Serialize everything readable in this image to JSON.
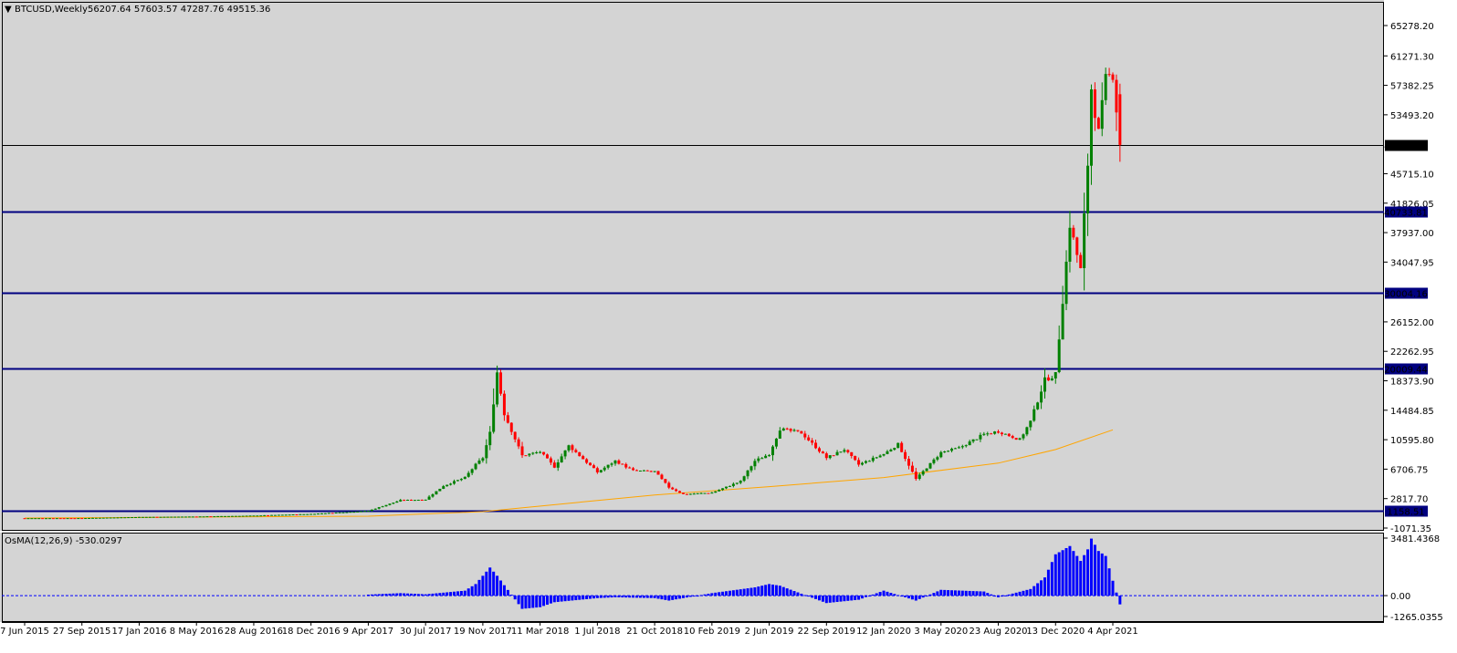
{
  "header": {
    "symbol_arrow": "▼",
    "symbol": "BTCUSD,Weekly",
    "ohlc": "56207.64 57603.57 47287.76 49515.36"
  },
  "colors": {
    "background": "#d4d4d4",
    "bull_candle": "#008000",
    "bear_candle": "#ff0000",
    "ma_line": "#ffa500",
    "level_line": "#000080",
    "price_line": "#000000",
    "osma_bar": "#0000ff"
  },
  "chart_data": [
    {
      "type": "candlestick",
      "title": "BTCUSD,Weekly",
      "ylim": [
        -1071.35,
        67000
      ],
      "y_ticks": [
        65278.2,
        61271.3,
        57382.25,
        53493.2,
        45715.1,
        41826.05,
        37937.0,
        34047.95,
        26152.0,
        22262.95,
        18373.9,
        14484.85,
        10595.8,
        6706.75,
        2817.7,
        -1071.35
      ],
      "y_tick_labels": [
        "65278.20",
        "61271.30",
        "57382.25",
        "53493.20",
        "45715.10",
        "41826.05",
        "37937.00",
        "34047.95",
        "26152.00",
        "22262.95",
        "18373.90",
        "14484.85",
        "10595.80",
        "6706.75",
        "2817.70",
        "-1071.35"
      ],
      "x_tick_labels": [
        "7 Jun 2015",
        "27 Sep 2015",
        "17 Jan 2016",
        "8 May 2016",
        "28 Aug 2016",
        "18 Dec 2016",
        "9 Apr 2017",
        "30 Jul 2017",
        "19 Nov 2017",
        "11 Mar 2018",
        "1 Jul 2018",
        "21 Oct 2018",
        "10 Feb 2019",
        "2 Jun 2019",
        "22 Sep 2019",
        "12 Jan 2020",
        "3 May 2020",
        "23 Aug 2020",
        "13 Dec 2020",
        "4 Apr 2021"
      ],
      "close_series": [
        {
          "date": "7 Jun 2015",
          "value": 230
        },
        {
          "date": "27 Sep 2015",
          "value": 240
        },
        {
          "date": "17 Jan 2016",
          "value": 390
        },
        {
          "date": "8 May 2016",
          "value": 450
        },
        {
          "date": "28 Aug 2016",
          "value": 570
        },
        {
          "date": "18 Dec 2016",
          "value": 790
        },
        {
          "date": "9 Apr 2017",
          "value": 1200
        },
        {
          "date": "11 Jun 2017",
          "value": 2600
        },
        {
          "date": "30 Jul 2017",
          "value": 2700
        },
        {
          "date": "3 Sep 2017",
          "value": 4500
        },
        {
          "date": "15 Oct 2017",
          "value": 5600
        },
        {
          "date": "5 Nov 2017",
          "value": 7300
        },
        {
          "date": "19 Nov 2017",
          "value": 8200
        },
        {
          "date": "3 Dec 2017",
          "value": 11500
        },
        {
          "date": "17 Dec 2017",
          "value": 19500
        },
        {
          "date": "31 Dec 2017",
          "value": 14000
        },
        {
          "date": "4 Feb 2018",
          "value": 8500
        },
        {
          "date": "11 Mar 2018",
          "value": 9000
        },
        {
          "date": "8 Apr 2018",
          "value": 7000
        },
        {
          "date": "6 May 2018",
          "value": 9800
        },
        {
          "date": "1 Jul 2018",
          "value": 6300
        },
        {
          "date": "5 Aug 2018",
          "value": 7800
        },
        {
          "date": "9 Sep 2018",
          "value": 6500
        },
        {
          "date": "21 Oct 2018",
          "value": 6400
        },
        {
          "date": "18 Nov 2018",
          "value": 4300
        },
        {
          "date": "16 Dec 2018",
          "value": 3400
        },
        {
          "date": "10 Feb 2019",
          "value": 3600
        },
        {
          "date": "7 Apr 2019",
          "value": 5100
        },
        {
          "date": "5 May 2019",
          "value": 7800
        },
        {
          "date": "2 Jun 2019",
          "value": 8700
        },
        {
          "date": "23 Jun 2019",
          "value": 12000
        },
        {
          "date": "4 Aug 2019",
          "value": 11500
        },
        {
          "date": "22 Sep 2019",
          "value": 8200
        },
        {
          "date": "27 Oct 2019",
          "value": 9300
        },
        {
          "date": "24 Nov 2019",
          "value": 7300
        },
        {
          "date": "12 Jan 2020",
          "value": 8700
        },
        {
          "date": "9 Feb 2020",
          "value": 10000
        },
        {
          "date": "15 Mar 2020",
          "value": 5400
        },
        {
          "date": "3 May 2020",
          "value": 8900
        },
        {
          "date": "7 Jun 2020",
          "value": 9500
        },
        {
          "date": "26 Jul 2020",
          "value": 11300
        },
        {
          "date": "23 Aug 2020",
          "value": 11700
        },
        {
          "date": "4 Oct 2020",
          "value": 10600
        },
        {
          "date": "25 Oct 2020",
          "value": 13000
        },
        {
          "date": "22 Nov 2020",
          "value": 18500
        },
        {
          "date": "13 Dec 2020",
          "value": 19200
        },
        {
          "date": "27 Dec 2020",
          "value": 29000
        },
        {
          "date": "10 Jan 2021",
          "value": 39000
        },
        {
          "date": "31 Jan 2021",
          "value": 33000
        },
        {
          "date": "14 Feb 2021",
          "value": 47000
        },
        {
          "date": "21 Feb 2021",
          "value": 57000
        },
        {
          "date": "7 Mar 2021",
          "value": 51000
        },
        {
          "date": "21 Mar 2021",
          "value": 58000
        },
        {
          "date": "4 Apr 2021",
          "value": 59000
        },
        {
          "date": "18 Apr 2021",
          "value": 49515.36
        }
      ],
      "last_candle": {
        "open": 56207.64,
        "high": 57603.57,
        "low": 47287.76,
        "close": 49515.36
      },
      "current_price": 49515.36,
      "current_price_label": "49515.36",
      "horizontal_levels": [
        {
          "value": 40733.81,
          "label": "40733.81"
        },
        {
          "value": 30004.16,
          "label": "30004.16"
        },
        {
          "value": 20009.44,
          "label": "20009.44"
        },
        {
          "value": 1158.51,
          "label": "1158.51"
        }
      ],
      "ma_series": [
        {
          "date": "7 Jun 2015",
          "value": 250
        },
        {
          "date": "9 Apr 2017",
          "value": 500
        },
        {
          "date": "19 Nov 2017",
          "value": 1100
        },
        {
          "date": "21 Oct 2018",
          "value": 3300
        },
        {
          "date": "2 Jun 2019",
          "value": 4400
        },
        {
          "date": "12 Jan 2020",
          "value": 5600
        },
        {
          "date": "23 Aug 2020",
          "value": 7500
        },
        {
          "date": "13 Dec 2020",
          "value": 9300
        },
        {
          "date": "4 Apr 2021",
          "value": 11900
        }
      ],
      "grid": false,
      "legend": "none"
    },
    {
      "type": "bar",
      "title": "OsMA(12,26,9) -530.0297",
      "indicator": "OsMA(12,26,9)",
      "value_label": "-530.0297",
      "ylim": [
        -1265.0355,
        3481.4368
      ],
      "y_ticks": [
        3481.4368,
        0.0,
        -1265.0355
      ],
      "y_tick_labels": [
        "3481.4368",
        "0.00",
        "-1265.0355"
      ],
      "zero_line": true,
      "series": [
        {
          "date": "9 Apr 2017",
          "value": 60
        },
        {
          "date": "11 Jun 2017",
          "value": 150
        },
        {
          "date": "30 Jul 2017",
          "value": 80
        },
        {
          "date": "15 Oct 2017",
          "value": 300
        },
        {
          "date": "5 Nov 2017",
          "value": 700
        },
        {
          "date": "3 Dec 2017",
          "value": 1700
        },
        {
          "date": "17 Dec 2017",
          "value": 1200
        },
        {
          "date": "4 Feb 2018",
          "value": -800
        },
        {
          "date": "11 Mar 2018",
          "value": -700
        },
        {
          "date": "8 Apr 2018",
          "value": -400
        },
        {
          "date": "1 Jul 2018",
          "value": -150
        },
        {
          "date": "5 Aug 2018",
          "value": -100
        },
        {
          "date": "21 Oct 2018",
          "value": -150
        },
        {
          "date": "18 Nov 2018",
          "value": -300
        },
        {
          "date": "10 Feb 2019",
          "value": 150
        },
        {
          "date": "5 May 2019",
          "value": 500
        },
        {
          "date": "2 Jun 2019",
          "value": 700
        },
        {
          "date": "23 Jun 2019",
          "value": 600
        },
        {
          "date": "22 Sep 2019",
          "value": -450
        },
        {
          "date": "24 Nov 2019",
          "value": -250
        },
        {
          "date": "12 Jan 2020",
          "value": 300
        },
        {
          "date": "15 Mar 2020",
          "value": -300
        },
        {
          "date": "3 May 2020",
          "value": 350
        },
        {
          "date": "26 Jul 2020",
          "value": 250
        },
        {
          "date": "23 Aug 2020",
          "value": -100
        },
        {
          "date": "25 Oct 2020",
          "value": 400
        },
        {
          "date": "22 Nov 2020",
          "value": 1100
        },
        {
          "date": "13 Dec 2020",
          "value": 2500
        },
        {
          "date": "10 Jan 2021",
          "value": 3000
        },
        {
          "date": "31 Jan 2021",
          "value": 2100
        },
        {
          "date": "14 Feb 2021",
          "value": 2800
        },
        {
          "date": "21 Feb 2021",
          "value": 3450
        },
        {
          "date": "7 Mar 2021",
          "value": 2700
        },
        {
          "date": "21 Mar 2021",
          "value": 2400
        },
        {
          "date": "4 Apr 2021",
          "value": 900
        },
        {
          "date": "18 Apr 2021",
          "value": -530.03
        }
      ]
    }
  ]
}
